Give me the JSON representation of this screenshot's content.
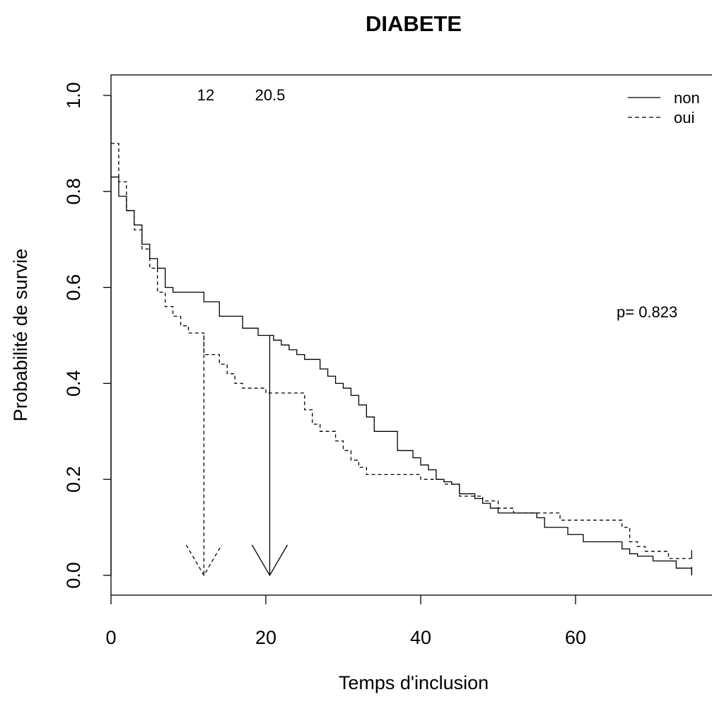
{
  "chart_data": {
    "type": "line",
    "title": "DIABETE",
    "xlabel": "Temps d'inclusion",
    "ylabel": "Probabilité de survie",
    "xlim": [
      0,
      77
    ],
    "ylim": [
      -0.04,
      1.04
    ],
    "xticks": [
      0,
      20,
      40,
      60
    ],
    "xtick_labels": [
      "0",
      "20",
      "40",
      "60"
    ],
    "yticks": [
      0.0,
      0.2,
      0.4,
      0.6,
      0.8,
      1.0
    ],
    "ytick_labels": [
      "0.0",
      "0.2",
      "0.4",
      "0.6",
      "0.8",
      "1.0"
    ],
    "grid": false,
    "legend_position": "top-right",
    "series": [
      {
        "name": "non",
        "line_style": "solid",
        "color": "#000000",
        "x": [
          0,
          1,
          2,
          3,
          4,
          5,
          6,
          7,
          8,
          12,
          14,
          17,
          19,
          21,
          22,
          23,
          24,
          25,
          27,
          28,
          29,
          30,
          31,
          32,
          33,
          34,
          37,
          39,
          40,
          41,
          42,
          43,
          44,
          45,
          47,
          48,
          49,
          50,
          55,
          56,
          59,
          61,
          66,
          67,
          68,
          70,
          73,
          75
        ],
        "y": [
          0.83,
          0.79,
          0.76,
          0.73,
          0.69,
          0.66,
          0.64,
          0.6,
          0.59,
          0.57,
          0.54,
          0.515,
          0.5,
          0.49,
          0.48,
          0.47,
          0.46,
          0.45,
          0.43,
          0.415,
          0.4,
          0.39,
          0.375,
          0.355,
          0.33,
          0.3,
          0.26,
          0.245,
          0.23,
          0.22,
          0.2,
          0.195,
          0.19,
          0.17,
          0.16,
          0.15,
          0.14,
          0.13,
          0.12,
          0.1,
          0.085,
          0.07,
          0.055,
          0.045,
          0.04,
          0.03,
          0.015,
          0.0
        ],
        "median": 20.5
      },
      {
        "name": "oui",
        "line_style": "dashed",
        "color": "#000000",
        "x": [
          0,
          1,
          2,
          3,
          4,
          5,
          6,
          7,
          8,
          9,
          10,
          12,
          14,
          15,
          16,
          17,
          20,
          25,
          26,
          27,
          29,
          30,
          31,
          32,
          33,
          40,
          43,
          45,
          48,
          50,
          52,
          58,
          66,
          67,
          68,
          69,
          72,
          75
        ],
        "y": [
          0.9,
          0.82,
          0.76,
          0.72,
          0.68,
          0.64,
          0.59,
          0.56,
          0.54,
          0.52,
          0.505,
          0.46,
          0.44,
          0.42,
          0.4,
          0.39,
          0.38,
          0.345,
          0.315,
          0.3,
          0.28,
          0.26,
          0.24,
          0.225,
          0.21,
          0.2,
          0.19,
          0.165,
          0.155,
          0.14,
          0.13,
          0.115,
          0.1,
          0.07,
          0.06,
          0.05,
          0.035,
          0.035
        ],
        "median": 12
      }
    ],
    "median_labels": [
      "12",
      "20.5"
    ],
    "annotation": "p= 0.823"
  }
}
